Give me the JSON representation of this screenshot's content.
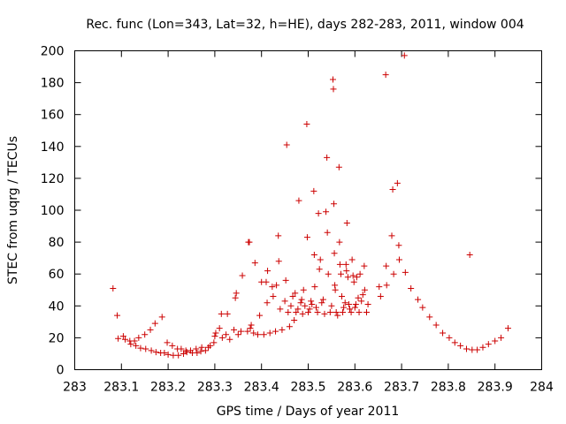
{
  "chart_data": {
    "type": "scatter",
    "title": "Rec. func (Lon=343, Lat=32, h=HE), days 282-283, 2011, window 004",
    "xlabel": "GPS time / Days of year 2011",
    "ylabel": "STEC from uqrg / TECUs",
    "xlim": [
      283,
      284
    ],
    "ylim": [
      0,
      200
    ],
    "x_ticks": [
      283,
      283.1,
      283.2,
      283.3,
      283.4,
      283.5,
      283.6,
      283.7,
      283.8,
      283.9,
      284
    ],
    "x_tick_labels": [
      "283",
      "283.1",
      "283.2",
      "283.3",
      "283.4",
      "283.5",
      "283.6",
      "283.7",
      "283.8",
      "283.9",
      "284"
    ],
    "y_ticks": [
      0,
      20,
      40,
      60,
      80,
      100,
      120,
      140,
      160,
      180,
      200
    ],
    "y_tick_labels": [
      "0",
      "20",
      "40",
      "60",
      "80",
      "100",
      "120",
      "140",
      "160",
      "180",
      "200"
    ],
    "grid": false,
    "marker": "plus",
    "marker_color": "#cc0000",
    "points": [
      [
        283.082,
        51
      ],
      [
        283.091,
        34
      ],
      [
        283.093,
        19.5
      ],
      [
        283.104,
        21
      ],
      [
        283.108,
        19
      ],
      [
        283.118,
        18
      ],
      [
        283.12,
        16
      ],
      [
        283.128,
        18
      ],
      [
        283.131,
        15
      ],
      [
        283.137,
        20
      ],
      [
        283.141,
        13.5
      ],
      [
        283.15,
        22
      ],
      [
        283.152,
        13
      ],
      [
        283.162,
        25
      ],
      [
        283.164,
        12
      ],
      [
        283.172,
        29
      ],
      [
        283.174,
        11
      ],
      [
        283.184,
        10.5
      ],
      [
        283.187,
        33
      ],
      [
        283.192,
        10.5
      ],
      [
        283.198,
        17
      ],
      [
        283.2,
        9.5
      ],
      [
        283.209,
        15
      ],
      [
        283.211,
        9
      ],
      [
        283.22,
        13
      ],
      [
        283.222,
        9
      ],
      [
        283.228,
        13
      ],
      [
        283.233,
        10
      ],
      [
        283.238,
        12
      ],
      [
        283.24,
        11
      ],
      [
        283.248,
        12
      ],
      [
        283.252,
        10.5
      ],
      [
        283.26,
        13
      ],
      [
        283.262,
        10.5
      ],
      [
        283.27,
        11.5
      ],
      [
        283.272,
        14
      ],
      [
        283.28,
        12
      ],
      [
        283.286,
        14
      ],
      [
        283.29,
        15
      ],
      [
        283.298,
        17
      ],
      [
        283.3,
        21
      ],
      [
        283.302,
        23
      ],
      [
        283.31,
        26
      ],
      [
        283.314,
        35
      ],
      [
        283.316,
        20
      ],
      [
        283.324,
        22
      ],
      [
        283.327,
        35
      ],
      [
        283.332,
        19
      ],
      [
        283.341,
        25
      ],
      [
        283.344,
        45
      ],
      [
        283.346,
        48
      ],
      [
        283.35,
        22
      ],
      [
        283.356,
        24
      ],
      [
        283.359,
        59
      ],
      [
        283.37,
        24
      ],
      [
        283.372,
        80
      ],
      [
        283.374,
        80
      ],
      [
        283.376,
        26
      ],
      [
        283.378,
        28
      ],
      [
        283.383,
        23
      ],
      [
        283.386,
        67
      ],
      [
        283.392,
        22
      ],
      [
        283.396,
        34
      ],
      [
        283.4,
        55
      ],
      [
        283.405,
        22
      ],
      [
        283.41,
        55
      ],
      [
        283.412,
        42
      ],
      [
        283.413,
        62
      ],
      [
        283.418,
        23
      ],
      [
        283.423,
        52
      ],
      [
        283.425,
        46
      ],
      [
        283.43,
        24
      ],
      [
        283.432,
        53
      ],
      [
        283.436,
        84
      ],
      [
        283.437,
        68
      ],
      [
        283.44,
        38
      ],
      [
        283.444,
        25
      ],
      [
        283.45,
        43
      ],
      [
        283.452,
        56
      ],
      [
        283.454,
        141
      ],
      [
        283.457,
        36
      ],
      [
        283.46,
        27
      ],
      [
        283.463,
        40
      ],
      [
        283.467,
        46
      ],
      [
        283.47,
        31
      ],
      [
        283.472,
        48
      ],
      [
        283.474,
        36
      ],
      [
        283.478,
        38
      ],
      [
        283.48,
        106
      ],
      [
        283.484,
        42
      ],
      [
        283.486,
        44
      ],
      [
        283.488,
        35
      ],
      [
        283.49,
        50
      ],
      [
        283.493,
        40
      ],
      [
        283.497,
        154
      ],
      [
        283.498,
        83
      ],
      [
        283.5,
        36
      ],
      [
        283.503,
        38
      ],
      [
        283.506,
        43
      ],
      [
        283.508,
        41
      ],
      [
        283.512,
        112
      ],
      [
        283.513,
        72
      ],
      [
        283.514,
        52
      ],
      [
        283.517,
        39
      ],
      [
        283.52,
        36
      ],
      [
        283.522,
        98
      ],
      [
        283.524,
        63
      ],
      [
        283.526,
        69
      ],
      [
        283.529,
        42
      ],
      [
        283.532,
        44
      ],
      [
        283.535,
        35
      ],
      [
        283.538,
        99
      ],
      [
        283.54,
        133
      ],
      [
        283.541,
        86
      ],
      [
        283.543,
        60
      ],
      [
        283.547,
        36
      ],
      [
        283.55,
        40
      ],
      [
        283.553,
        182
      ],
      [
        283.554,
        176
      ],
      [
        283.555,
        104
      ],
      [
        283.556,
        73
      ],
      [
        283.557,
        53
      ],
      [
        283.558,
        50
      ],
      [
        283.56,
        36
      ],
      [
        283.563,
        34
      ],
      [
        283.566,
        127
      ],
      [
        283.567,
        80
      ],
      [
        283.568,
        66
      ],
      [
        283.57,
        60
      ],
      [
        283.572,
        46
      ],
      [
        283.574,
        36
      ],
      [
        283.576,
        39
      ],
      [
        283.579,
        42
      ],
      [
        283.581,
        66
      ],
      [
        283.582,
        62
      ],
      [
        283.583,
        92
      ],
      [
        283.585,
        58
      ],
      [
        283.587,
        41
      ],
      [
        283.589,
        38
      ],
      [
        283.592,
        36
      ],
      [
        283.594,
        69
      ],
      [
        283.596,
        59
      ],
      [
        283.598,
        55
      ],
      [
        283.6,
        39
      ],
      [
        283.602,
        41
      ],
      [
        283.604,
        58
      ],
      [
        283.607,
        45
      ],
      [
        283.609,
        36
      ],
      [
        283.611,
        60
      ],
      [
        283.614,
        43
      ],
      [
        283.617,
        47
      ],
      [
        283.62,
        65
      ],
      [
        283.621,
        50
      ],
      [
        283.625,
        36
      ],
      [
        283.628,
        41
      ],
      [
        283.652,
        52
      ],
      [
        283.655,
        46
      ],
      [
        283.666,
        185
      ],
      [
        283.667,
        65
      ],
      [
        283.668,
        53
      ],
      [
        283.679,
        84
      ],
      [
        283.681,
        113
      ],
      [
        283.683,
        60
      ],
      [
        283.691,
        117
      ],
      [
        283.694,
        78
      ],
      [
        283.695,
        69
      ],
      [
        283.706,
        197
      ],
      [
        283.708,
        61
      ],
      [
        283.72,
        51
      ],
      [
        283.735,
        44
      ],
      [
        283.745,
        39
      ],
      [
        283.76,
        33
      ],
      [
        283.774,
        28
      ],
      [
        283.788,
        23
      ],
      [
        283.802,
        20
      ],
      [
        283.814,
        17
      ],
      [
        283.826,
        15
      ],
      [
        283.839,
        13
      ],
      [
        283.846,
        72
      ],
      [
        283.851,
        12.5
      ],
      [
        283.862,
        12.5
      ],
      [
        283.874,
        14
      ],
      [
        283.886,
        16
      ],
      [
        283.9,
        18
      ],
      [
        283.913,
        20
      ],
      [
        283.928,
        26
      ]
    ]
  }
}
